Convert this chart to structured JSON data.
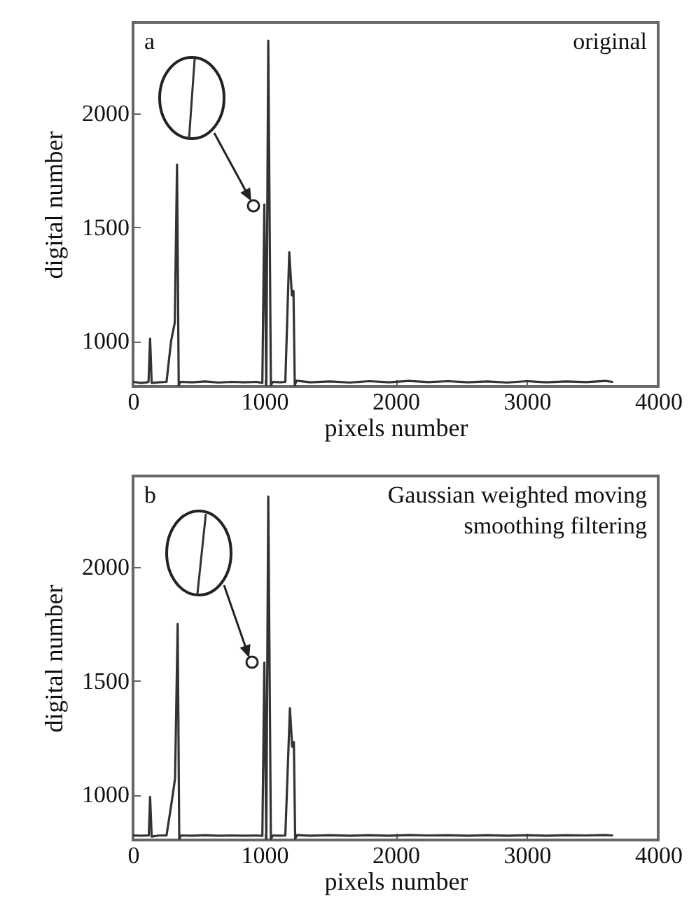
{
  "chart_data": [
    {
      "type": "line",
      "xlabel": "pixels number",
      "ylabel": "digital number",
      "annotations": [
        "a",
        "original"
      ],
      "xlim": [
        0,
        4000
      ],
      "xticks": [
        0,
        1000,
        2000,
        3000,
        4000
      ],
      "ylim": [
        800,
        2400
      ],
      "yticks": [
        1000,
        1500,
        2000
      ],
      "grid": false,
      "series": [
        {
          "color": "#333333",
          "x": [
            0,
            60,
            110,
            118,
            130,
            142,
            200,
            255,
            290,
            318,
            335,
            348,
            360,
            450,
            550,
            650,
            750,
            850,
            940,
            985,
            1000,
            1015,
            1030,
            1050,
            1065,
            1120,
            1160,
            1190,
            1210,
            1222,
            1232,
            1245,
            1350,
            1500,
            1650,
            1800,
            1950,
            2100,
            2250,
            2400,
            2550,
            2700,
            2850,
            3000,
            3150,
            3300,
            3450,
            3600,
            3650
          ],
          "values": [
            820,
            815,
            818,
            820,
            1010,
            815,
            818,
            820,
            1000,
            1080,
            1775,
            805,
            820,
            818,
            822,
            817,
            820,
            818,
            820,
            815,
            1600,
            805,
            2320,
            805,
            820,
            818,
            820,
            1390,
            1200,
            1220,
            805,
            825,
            818,
            822,
            817,
            823,
            818,
            824,
            819,
            823,
            818,
            822,
            817,
            823,
            818,
            822,
            819,
            824,
            820
          ]
        }
      ]
    },
    {
      "type": "line",
      "xlabel": "pixels number",
      "ylabel": "digital number",
      "annotations": [
        "b",
        "Gaussian weighted moving smoothing filtering"
      ],
      "xlim": [
        0,
        4000
      ],
      "xticks": [
        0,
        1000,
        2000,
        3000,
        4000
      ],
      "ylim": [
        800,
        2400
      ],
      "yticks": [
        1000,
        1500,
        2000
      ],
      "grid": false,
      "series": [
        {
          "color": "#333333",
          "x": [
            0,
            60,
            110,
            120,
            130,
            142,
            200,
            255,
            290,
            320,
            340,
            352,
            365,
            450,
            550,
            650,
            750,
            850,
            940,
            985,
            1000,
            1015,
            1030,
            1050,
            1065,
            1120,
            1160,
            1195,
            1212,
            1225,
            1235,
            1250,
            1350,
            1500,
            1650,
            1800,
            1950,
            2100,
            2250,
            2400,
            2550,
            2700,
            2850,
            3000,
            3150,
            3300,
            3450,
            3600,
            3650
          ],
          "values": [
            820,
            819,
            820,
            820,
            990,
            815,
            820,
            820,
            950,
            1070,
            1750,
            805,
            820,
            819,
            821,
            819,
            820,
            819,
            820,
            818,
            1580,
            805,
            2310,
            805,
            820,
            819,
            820,
            1380,
            1210,
            1230,
            805,
            822,
            819,
            821,
            819,
            821,
            819,
            822,
            820,
            821,
            819,
            821,
            819,
            821,
            819,
            821,
            820,
            822,
            820
          ]
        }
      ]
    }
  ]
}
